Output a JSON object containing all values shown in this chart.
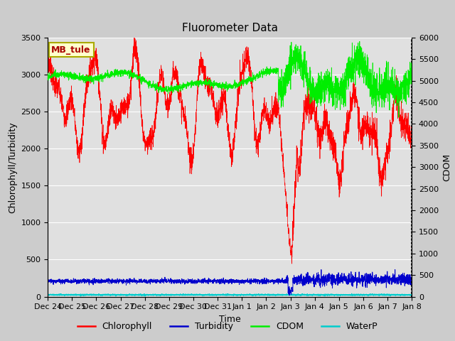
{
  "title": "Fluorometer Data",
  "xlabel": "Time",
  "ylabel_left": "Chlorophyll/Turbidity",
  "ylabel_right": "CDOM",
  "ylim_left": [
    0,
    3500
  ],
  "ylim_right": [
    0,
    6000
  ],
  "yticks_left": [
    0,
    500,
    1000,
    1500,
    2000,
    2500,
    3000,
    3500
  ],
  "yticks_right": [
    0,
    500,
    1000,
    1500,
    2000,
    2500,
    3000,
    3500,
    4000,
    4500,
    5000,
    5500,
    6000
  ],
  "xtick_labels": [
    "Dec 24",
    "Dec 25",
    "Dec 26",
    "Dec 27",
    "Dec 28",
    "Dec 29",
    "Dec 30",
    "Dec 31",
    "Jan 1",
    "Jan 2",
    "Jan 3",
    "Jan 4",
    "Jan 5",
    "Jan 6",
    "Jan 7",
    "Jan 8"
  ],
  "annotation_text": "MB_tule",
  "annotation_color": "#aa0000",
  "annotation_bg": "#ffffcc",
  "annotation_border": "#aaaa00",
  "chlorophyll_color": "#ff0000",
  "turbidity_color": "#0000cc",
  "cdom_color": "#00ee00",
  "waterp_color": "#00cccc",
  "background_color": "#cccccc",
  "plot_bg": "#e0e0e0",
  "grid_color": "#ffffff",
  "title_fontsize": 11,
  "axis_fontsize": 9,
  "tick_fontsize": 8,
  "legend_fontsize": 9,
  "seed": 7
}
